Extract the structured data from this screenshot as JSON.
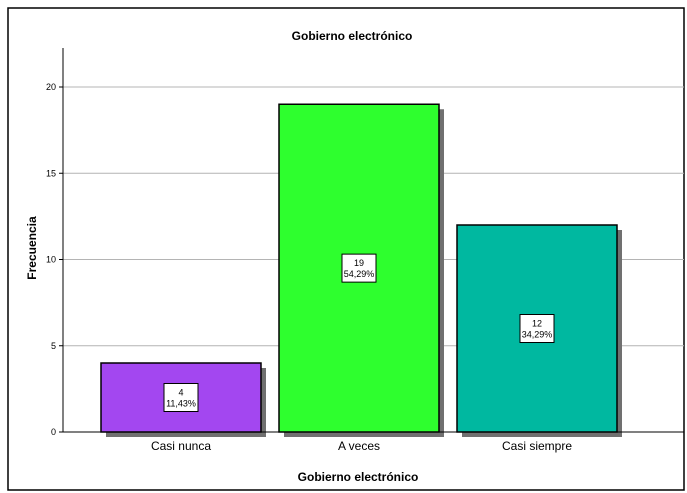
{
  "chart_data": {
    "type": "bar",
    "title": "Gobierno electrónico",
    "xlabel": "Gobierno electrónico",
    "ylabel": "Frecuencia",
    "categories": [
      "Casi nunca",
      "A veces",
      "Casi siempre"
    ],
    "values": [
      4,
      19,
      12
    ],
    "percent_labels": [
      "11,43%",
      "54,29%",
      "34,29%"
    ],
    "colors": [
      "#A347F0",
      "#2EFF2E",
      "#00B8A0"
    ],
    "ylim": [
      0,
      22
    ],
    "yticks": [
      0,
      5,
      10,
      15,
      20
    ],
    "grid": true,
    "legend": "none"
  }
}
